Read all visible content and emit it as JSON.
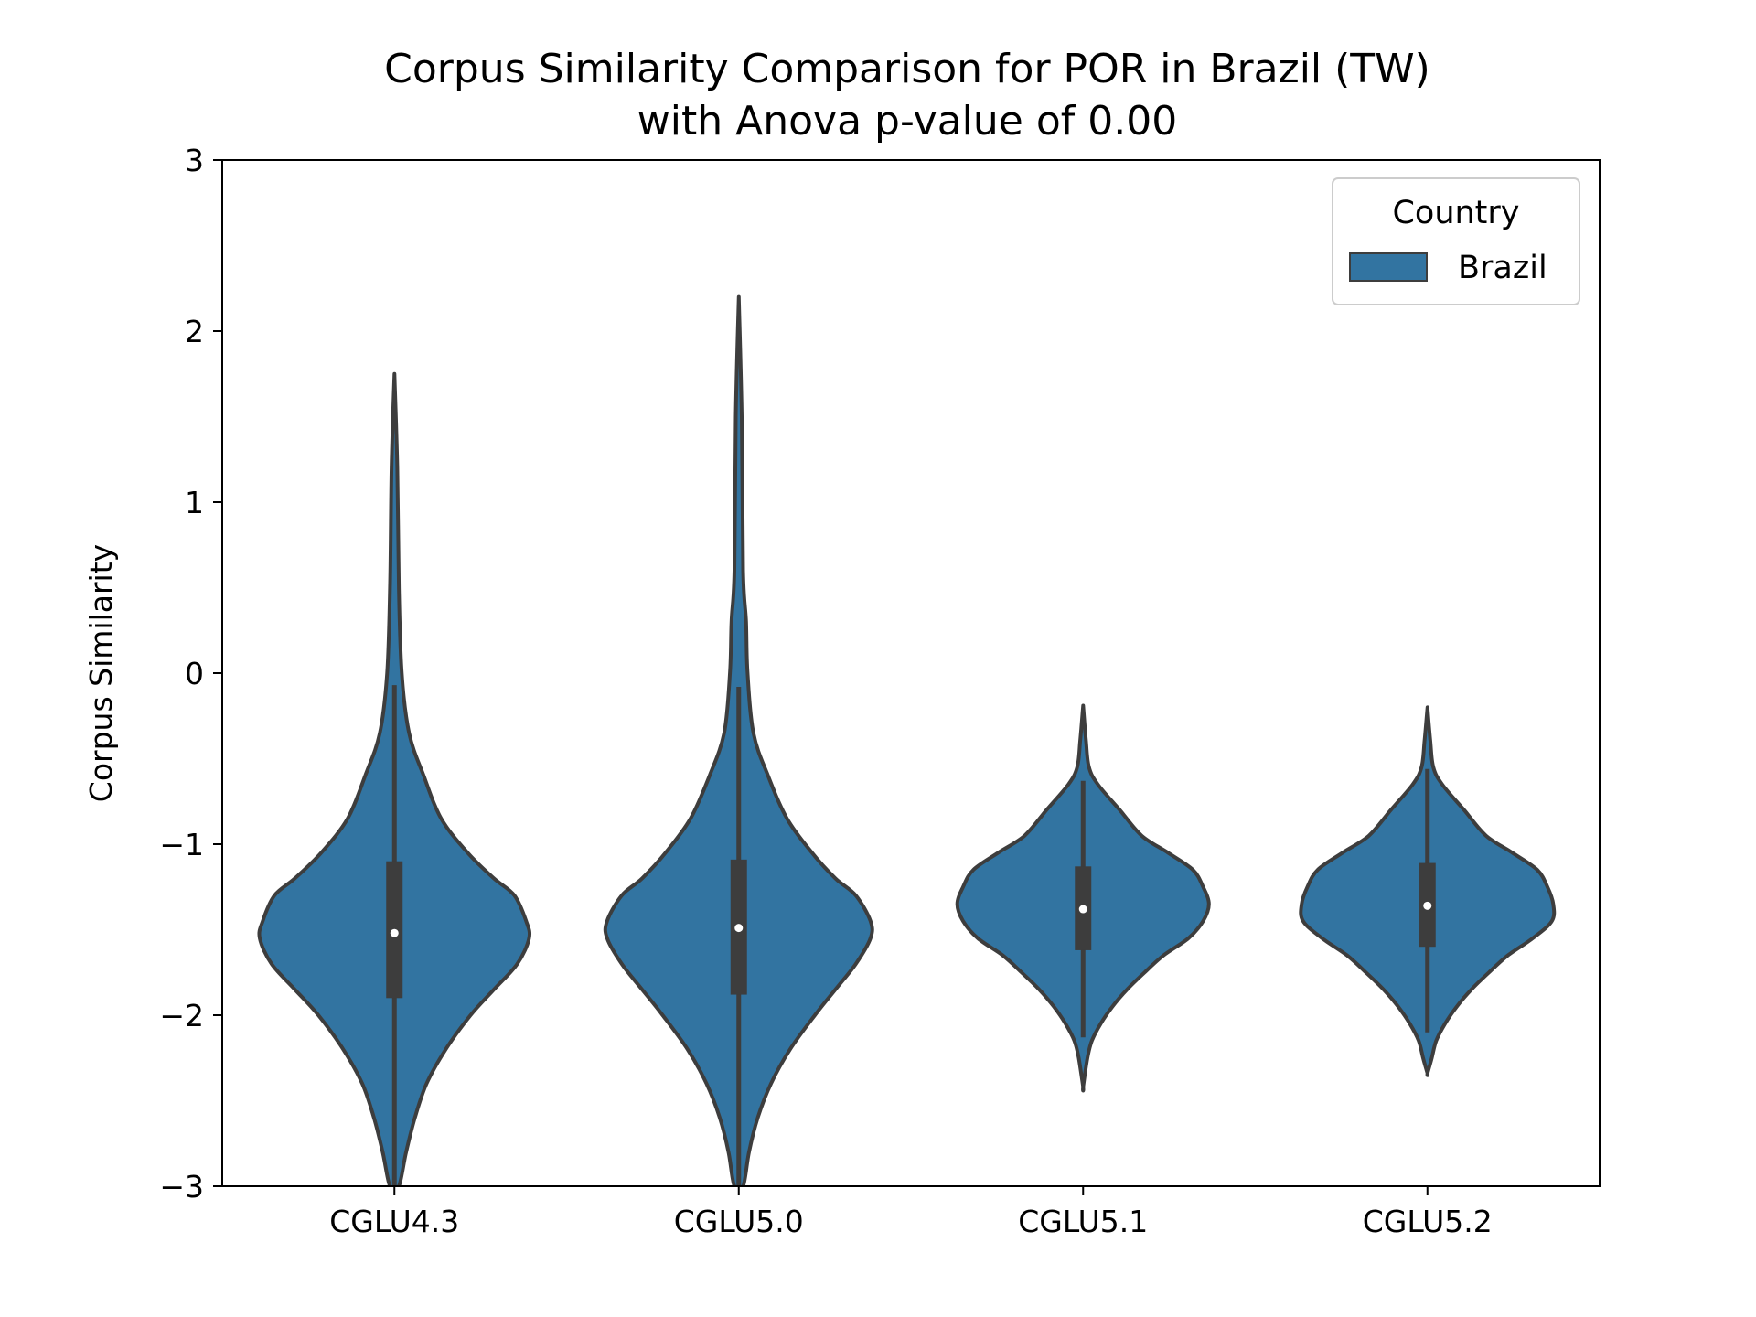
{
  "chart_data": {
    "type": "violin",
    "title": "Corpus Similarity Comparison for POR in Brazil (TW)",
    "subtitle": "with Anova p-value of 0.00",
    "xlabel": "",
    "ylabel": "Corpus Similarity",
    "ylim": [
      -3,
      3
    ],
    "yticks": [
      "3",
      "2",
      "1",
      "0",
      "−1",
      "−2",
      "−3"
    ],
    "ytick_values": [
      3,
      2,
      1,
      0,
      -1,
      -2,
      -3
    ],
    "categories": [
      "CGLU4.3",
      "CGLU5.0",
      "CGLU5.1",
      "CGLU5.2"
    ],
    "grid": false,
    "legend": {
      "title": "Country",
      "position": "top-right",
      "entries": [
        {
          "name": "Brazil",
          "color": "#3274a1"
        }
      ]
    },
    "colors": {
      "fill": "#3274a1",
      "edge": "#3d3d3d",
      "median": "#ffffff"
    },
    "series": [
      {
        "name": "Brazil",
        "violins": [
          {
            "category": "CGLU4.3",
            "median": -1.52,
            "q1": -1.9,
            "q3": -1.1,
            "whisker_low": -3.0,
            "whisker_high": -0.07,
            "min": -3.0,
            "max": 1.75,
            "density": [
              [
                1.75,
                0.0
              ],
              [
                1.2,
                0.02
              ],
              [
                0.5,
                0.03
              ],
              [
                0.0,
                0.05
              ],
              [
                -0.35,
                0.1
              ],
              [
                -0.6,
                0.2
              ],
              [
                -0.85,
                0.32
              ],
              [
                -1.05,
                0.5
              ],
              [
                -1.2,
                0.68
              ],
              [
                -1.3,
                0.82
              ],
              [
                -1.45,
                0.9
              ],
              [
                -1.55,
                0.92
              ],
              [
                -1.7,
                0.84
              ],
              [
                -1.85,
                0.68
              ],
              [
                -2.0,
                0.52
              ],
              [
                -2.2,
                0.35
              ],
              [
                -2.4,
                0.22
              ],
              [
                -2.6,
                0.14
              ],
              [
                -2.8,
                0.08
              ],
              [
                -3.0,
                0.03
              ]
            ]
          },
          {
            "category": "CGLU5.0",
            "median": -1.49,
            "q1": -1.88,
            "q3": -1.09,
            "whisker_low": -3.0,
            "whisker_high": -0.08,
            "min": -3.0,
            "max": 2.2,
            "density": [
              [
                2.2,
                0.0
              ],
              [
                1.5,
                0.02
              ],
              [
                0.6,
                0.03
              ],
              [
                0.3,
                0.05
              ],
              [
                0.0,
                0.06
              ],
              [
                -0.35,
                0.1
              ],
              [
                -0.6,
                0.2
              ],
              [
                -0.85,
                0.33
              ],
              [
                -1.05,
                0.5
              ],
              [
                -1.2,
                0.66
              ],
              [
                -1.3,
                0.8
              ],
              [
                -1.45,
                0.9
              ],
              [
                -1.55,
                0.9
              ],
              [
                -1.7,
                0.8
              ],
              [
                -1.85,
                0.66
              ],
              [
                -2.0,
                0.52
              ],
              [
                -2.2,
                0.35
              ],
              [
                -2.4,
                0.22
              ],
              [
                -2.6,
                0.13
              ],
              [
                -2.8,
                0.07
              ],
              [
                -3.0,
                0.03
              ]
            ]
          },
          {
            "category": "CGLU5.1",
            "median": -1.38,
            "q1": -1.62,
            "q3": -1.13,
            "whisker_low": -2.13,
            "whisker_high": -0.63,
            "min": -2.42,
            "max": -0.19,
            "density": [
              [
                -0.19,
                0.0
              ],
              [
                -0.4,
                0.02
              ],
              [
                -0.55,
                0.04
              ],
              [
                -0.65,
                0.1
              ],
              [
                -0.8,
                0.25
              ],
              [
                -0.95,
                0.4
              ],
              [
                -1.05,
                0.58
              ],
              [
                -1.15,
                0.75
              ],
              [
                -1.25,
                0.82
              ],
              [
                -1.35,
                0.86
              ],
              [
                -1.45,
                0.82
              ],
              [
                -1.55,
                0.72
              ],
              [
                -1.65,
                0.55
              ],
              [
                -1.75,
                0.42
              ],
              [
                -1.85,
                0.3
              ],
              [
                -1.95,
                0.2
              ],
              [
                -2.05,
                0.12
              ],
              [
                -2.15,
                0.06
              ],
              [
                -2.25,
                0.03
              ],
              [
                -2.42,
                0.0
              ]
            ]
          },
          {
            "category": "CGLU5.2",
            "median": -1.36,
            "q1": -1.6,
            "q3": -1.11,
            "whisker_low": -2.1,
            "whisker_high": -0.56,
            "min": -2.34,
            "max": -0.2,
            "density": [
              [
                -0.2,
                0.0
              ],
              [
                -0.4,
                0.02
              ],
              [
                -0.55,
                0.04
              ],
              [
                -0.65,
                0.1
              ],
              [
                -0.8,
                0.25
              ],
              [
                -0.95,
                0.4
              ],
              [
                -1.05,
                0.58
              ],
              [
                -1.15,
                0.75
              ],
              [
                -1.25,
                0.82
              ],
              [
                -1.35,
                0.86
              ],
              [
                -1.45,
                0.85
              ],
              [
                -1.55,
                0.72
              ],
              [
                -1.65,
                0.55
              ],
              [
                -1.75,
                0.42
              ],
              [
                -1.85,
                0.3
              ],
              [
                -1.95,
                0.2
              ],
              [
                -2.05,
                0.12
              ],
              [
                -2.15,
                0.06
              ],
              [
                -2.25,
                0.03
              ],
              [
                -2.34,
                0.0
              ]
            ]
          }
        ]
      }
    ]
  }
}
